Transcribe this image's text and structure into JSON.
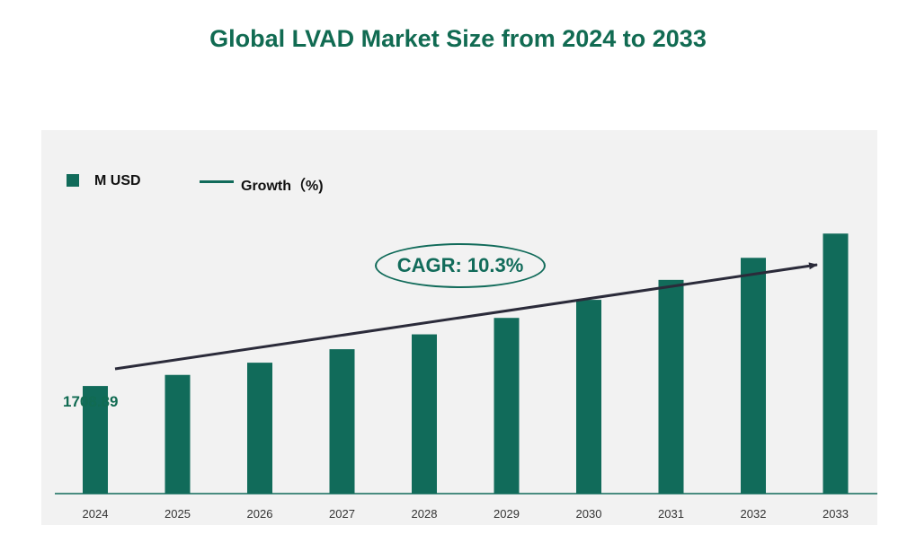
{
  "chart_data": {
    "type": "bar",
    "title": "Global LVAD Market Size from 2024 to 2033",
    "legend": {
      "bar_label": "M USD",
      "line_label": "Growth（%)"
    },
    "categories": [
      "2024",
      "2025",
      "2026",
      "2027",
      "2028",
      "2029",
      "2030",
      "2031",
      "2032",
      "2033"
    ],
    "series": [
      {
        "name": "M USD",
        "values": [
          1708.89,
          1885,
          2079,
          2293,
          2529,
          2790,
          3077,
          3394,
          3744,
          4129
        ]
      }
    ],
    "data_labels": {
      "first": "1708.89"
    },
    "annotation": "CAGR: 10.3%",
    "ylim": [
      0,
      5900
    ],
    "grid": false,
    "legend_position": "top-left",
    "colors": {
      "bar": "#116b5a",
      "title": "#116b52",
      "arrow": "#2b2b3a",
      "panel": "#f2f2f2"
    }
  }
}
